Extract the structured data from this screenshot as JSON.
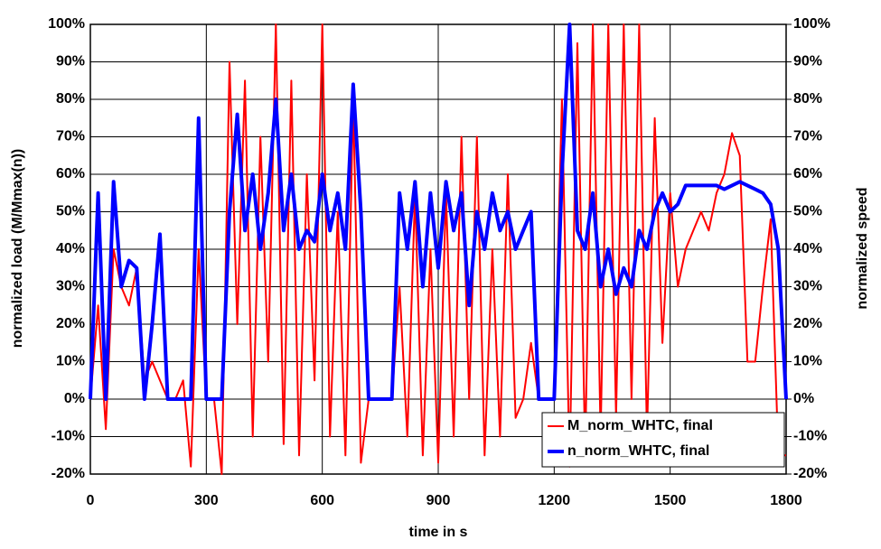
{
  "chart_data": {
    "type": "line",
    "x_label": "time in s",
    "y_label": "normalized load (M/Mmax(n))",
    "y2_label": "normalized speed",
    "xlim": [
      0,
      1800
    ],
    "xticks": [
      0,
      300,
      600,
      900,
      1200,
      1500,
      1800
    ],
    "ylim": [
      -20,
      100
    ],
    "yticks": [
      {
        "value": -20,
        "label": "-20%"
      },
      {
        "value": -10,
        "label": "-10%"
      },
      {
        "value": 0,
        "label": "0%"
      },
      {
        "value": 10,
        "label": "10%"
      },
      {
        "value": 20,
        "label": "20%"
      },
      {
        "value": 30,
        "label": "30%"
      },
      {
        "value": 40,
        "label": "40%"
      },
      {
        "value": 50,
        "label": "50%"
      },
      {
        "value": 60,
        "label": "60%"
      },
      {
        "value": 70,
        "label": "70%"
      },
      {
        "value": 80,
        "label": "80%"
      },
      {
        "value": 90,
        "label": "90%"
      },
      {
        "value": 100,
        "label": "100%"
      }
    ],
    "y2lim": [
      -20,
      100
    ],
    "y2ticks": [
      {
        "value": -20,
        "label": "-20%"
      },
      {
        "value": -10,
        "label": "-10%"
      },
      {
        "value": 0,
        "label": "0%"
      },
      {
        "value": 10,
        "label": "10%"
      },
      {
        "value": 20,
        "label": "20%"
      },
      {
        "value": 30,
        "label": "30%"
      },
      {
        "value": 40,
        "label": "40%"
      },
      {
        "value": 50,
        "label": "50%"
      },
      {
        "value": 60,
        "label": "60%"
      },
      {
        "value": 70,
        "label": "70%"
      },
      {
        "value": 80,
        "label": "80%"
      },
      {
        "value": 90,
        "label": "90%"
      },
      {
        "value": 100,
        "label": "100%"
      }
    ],
    "grid": true,
    "legend": "lower right",
    "x": [
      0,
      20,
      40,
      60,
      80,
      100,
      120,
      140,
      160,
      180,
      200,
      220,
      240,
      260,
      280,
      300,
      320,
      340,
      360,
      380,
      400,
      420,
      440,
      460,
      480,
      500,
      520,
      540,
      560,
      580,
      600,
      620,
      640,
      660,
      680,
      700,
      720,
      740,
      760,
      780,
      800,
      820,
      840,
      860,
      880,
      900,
      920,
      940,
      960,
      980,
      1000,
      1020,
      1040,
      1060,
      1080,
      1100,
      1120,
      1140,
      1160,
      1180,
      1200,
      1220,
      1240,
      1260,
      1280,
      1300,
      1320,
      1340,
      1360,
      1380,
      1400,
      1420,
      1440,
      1460,
      1480,
      1500,
      1520,
      1540,
      1560,
      1580,
      1600,
      1620,
      1640,
      1660,
      1680,
      1700,
      1720,
      1740,
      1760,
      1780,
      1800
    ],
    "series": [
      {
        "name": "M_norm_WHTC, final",
        "color": "#ff0000",
        "width": 2,
        "values": [
          0,
          25,
          -8,
          40,
          30,
          25,
          35,
          5,
          10,
          5,
          0,
          0,
          5,
          -18,
          40,
          0,
          0,
          -20,
          90,
          20,
          85,
          -10,
          70,
          10,
          100,
          -12,
          85,
          -15,
          60,
          5,
          100,
          -10,
          50,
          -15,
          80,
          -17,
          0,
          0,
          0,
          0,
          30,
          -10,
          55,
          -15,
          40,
          -17,
          55,
          -10,
          70,
          0,
          70,
          -15,
          40,
          -10,
          60,
          -5,
          0,
          15,
          0,
          0,
          0,
          80,
          -18,
          95,
          -15,
          100,
          -10,
          100,
          -5,
          100,
          0,
          100,
          -10,
          75,
          15,
          55,
          30,
          40,
          45,
          50,
          45,
          55,
          60,
          71,
          65,
          10,
          10,
          30,
          48,
          -15,
          -15
        ]
      },
      {
        "name": "n_norm_WHTC, final",
        "color": "#0000ff",
        "width": 4,
        "axis": "y2",
        "values": [
          0,
          55,
          0,
          58,
          30,
          37,
          35,
          0,
          20,
          44,
          0,
          0,
          0,
          0,
          75,
          0,
          0,
          0,
          50,
          76,
          45,
          60,
          40,
          55,
          80,
          45,
          60,
          40,
          45,
          42,
          60,
          45,
          55,
          40,
          84,
          50,
          0,
          0,
          0,
          0,
          55,
          40,
          58,
          30,
          55,
          35,
          58,
          45,
          55,
          25,
          50,
          40,
          55,
          45,
          50,
          40,
          45,
          50,
          0,
          0,
          0,
          60,
          100,
          45,
          40,
          55,
          30,
          40,
          28,
          35,
          30,
          45,
          40,
          50,
          55,
          50,
          52,
          57,
          57,
          57,
          57,
          57,
          56,
          57,
          58,
          57,
          56,
          55,
          52,
          40,
          0
        ]
      }
    ]
  }
}
